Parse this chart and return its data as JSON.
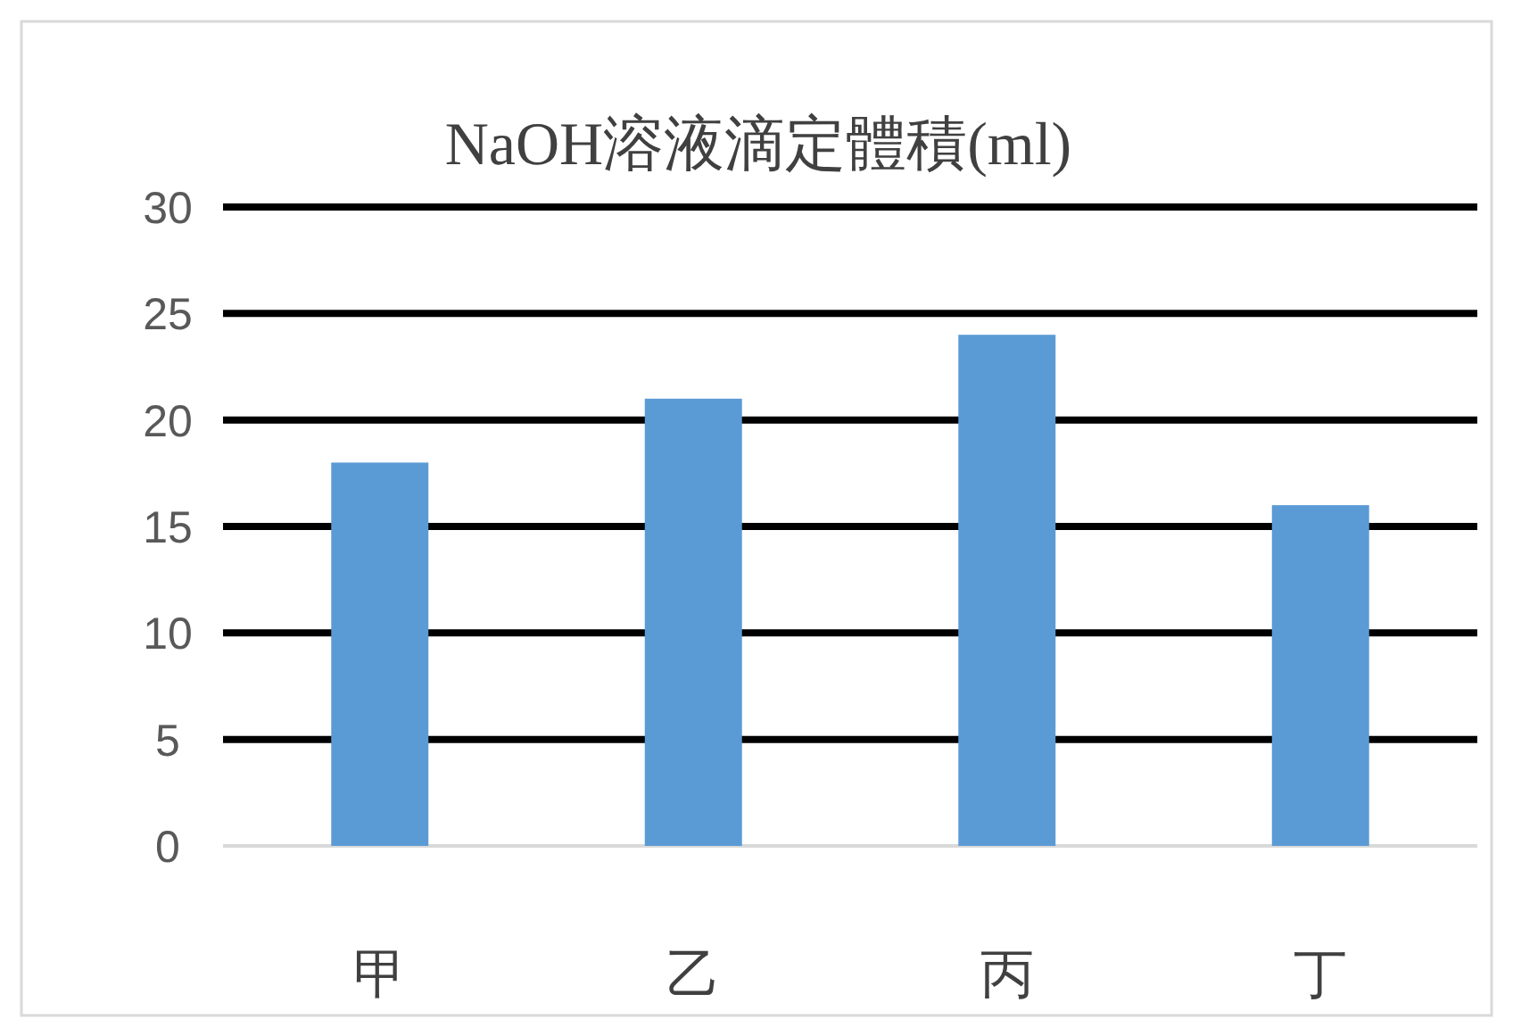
{
  "chart_data": {
    "type": "bar",
    "title": "NaOH溶液滴定體積(ml)",
    "categories": [
      "甲",
      "乙",
      "丙",
      "丁"
    ],
    "values": [
      18,
      21,
      24,
      16
    ],
    "color": "#5b9bd5",
    "ylim": [
      0,
      30
    ],
    "yticks": [
      0,
      5,
      10,
      15,
      20,
      25,
      30
    ],
    "grid": "y"
  }
}
